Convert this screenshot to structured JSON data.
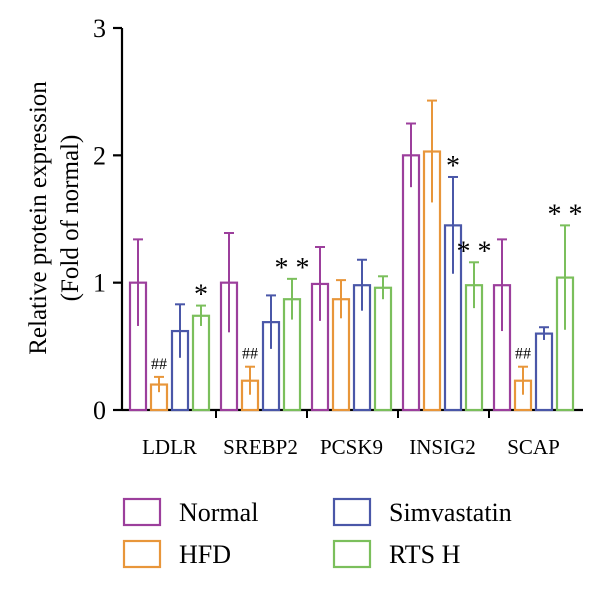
{
  "chart_data": {
    "type": "bar",
    "ylabel": [
      "Relative protein expression",
      "(Fold of normal)"
    ],
    "ylim": [
      0,
      3
    ],
    "yticks": [
      "0",
      "1",
      "2",
      "3"
    ],
    "categories": [
      "LDLR",
      "SREBP2",
      "PCSK9",
      "INSIG2",
      "SCAP"
    ],
    "series": [
      {
        "name": "Normal",
        "color": "#9c3f9c",
        "values": [
          1.0,
          1.0,
          0.99,
          2.0,
          0.98
        ],
        "errors": [
          0.34,
          0.39,
          0.29,
          0.25,
          0.36
        ]
      },
      {
        "name": "HFD",
        "color": "#e8963a",
        "values": [
          0.2,
          0.23,
          0.87,
          2.03,
          0.23
        ],
        "errors": [
          0.06,
          0.11,
          0.15,
          0.4,
          0.11
        ]
      },
      {
        "name": "Simvastatin",
        "color": "#4a57a8",
        "values": [
          0.62,
          0.69,
          0.98,
          1.45,
          0.6
        ],
        "errors": [
          0.21,
          0.21,
          0.2,
          0.38,
          0.05
        ]
      },
      {
        "name": "RTS H",
        "color": "#7bbf5c",
        "values": [
          0.74,
          0.87,
          0.96,
          0.98,
          1.04
        ],
        "errors": [
          0.08,
          0.16,
          0.09,
          0.18,
          0.41
        ]
      }
    ],
    "annotations": [
      {
        "category": 0,
        "series": 1,
        "text": "##"
      },
      {
        "category": 0,
        "series": 3,
        "text": "*"
      },
      {
        "category": 1,
        "series": 1,
        "text": "##"
      },
      {
        "category": 1,
        "series": 3,
        "text": "* *"
      },
      {
        "category": 3,
        "series": 2,
        "text": "*"
      },
      {
        "category": 3,
        "series": 3,
        "text": "* *"
      },
      {
        "category": 4,
        "series": 1,
        "text": "##"
      },
      {
        "category": 4,
        "series": 3,
        "text": "* *"
      }
    ],
    "legend_position": "bottom",
    "grid": false
  }
}
